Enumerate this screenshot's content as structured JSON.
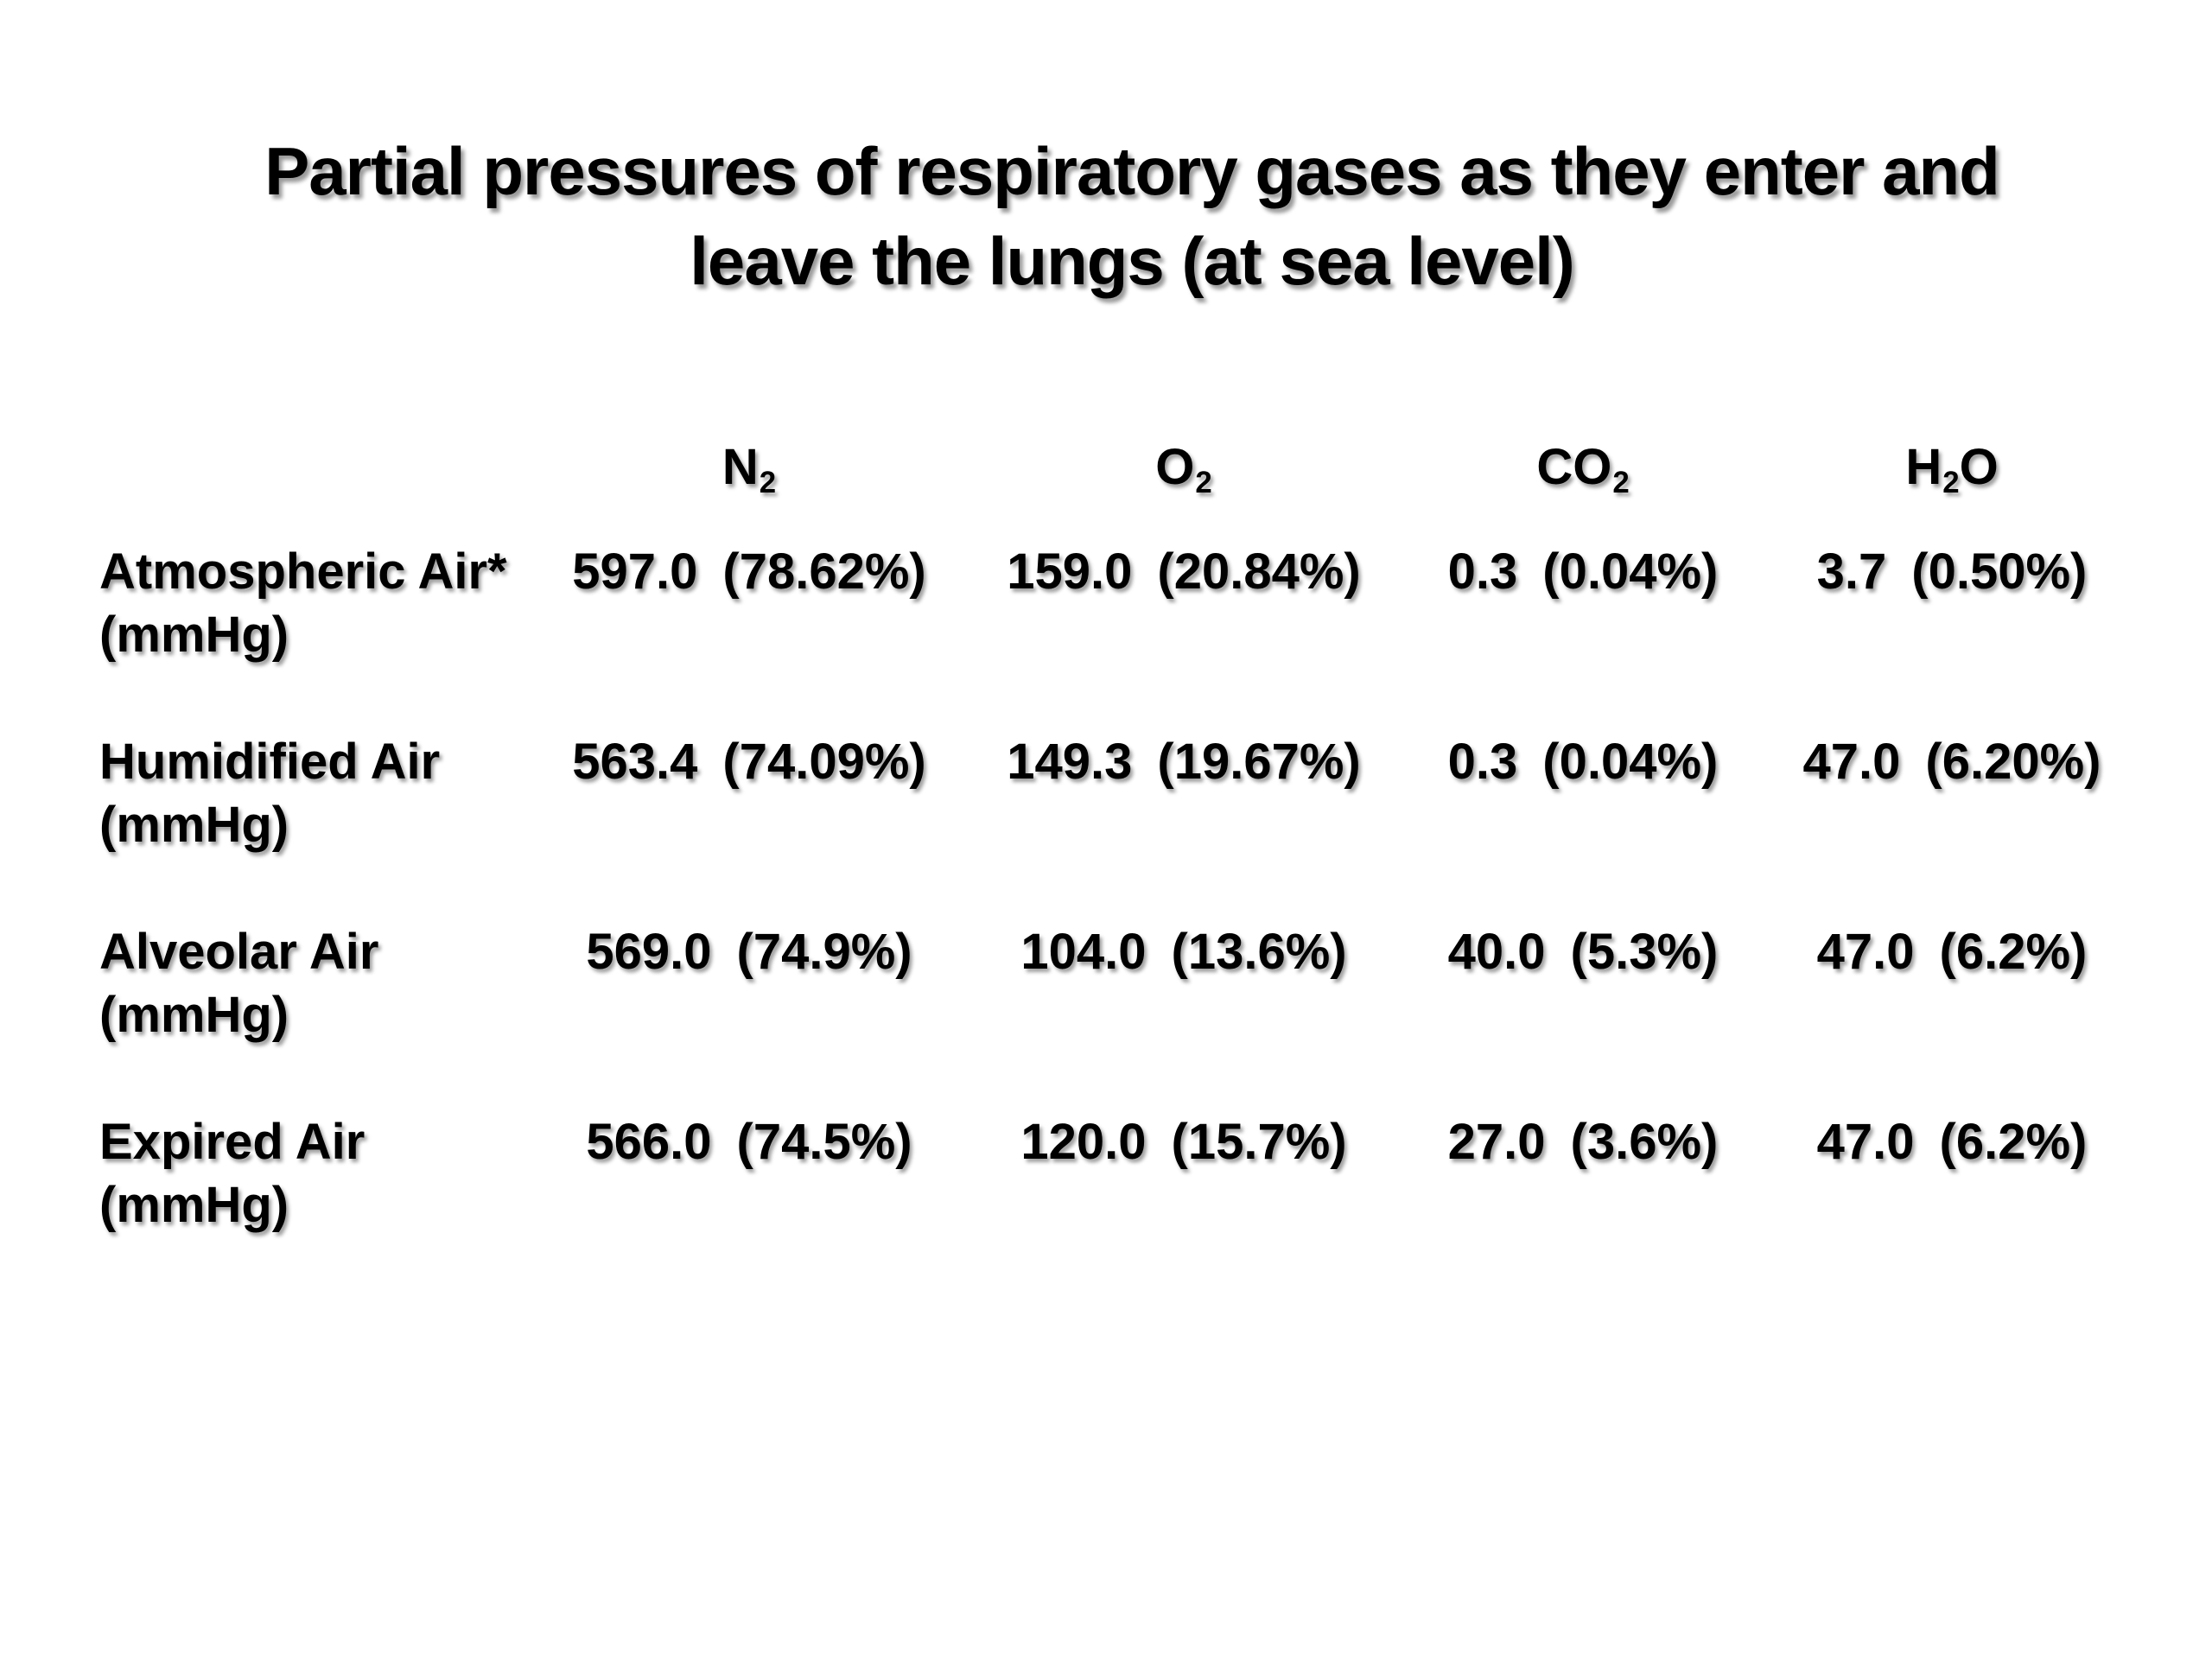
{
  "title": {
    "line1": "Partial pressures of respiratory gases as they enter and",
    "line2": "leave the lungs (at sea level)"
  },
  "table": {
    "columns": [
      {
        "main": "N",
        "sub": "2",
        "tail": ""
      },
      {
        "main": "O",
        "sub": "2",
        "tail": ""
      },
      {
        "main": "CO",
        "sub": "2",
        "tail": ""
      },
      {
        "main": "H",
        "sub": "2",
        "tail": "O"
      }
    ],
    "rows": [
      {
        "label": "Atmospheric Air*",
        "unit": "(mmHg)",
        "cells": [
          {
            "num": "597.0",
            "pct": "(78.62%)"
          },
          {
            "num": "159.0",
            "pct": "(20.84%)"
          },
          {
            "num": "0.3",
            "pct": "(0.04%)"
          },
          {
            "num": "3.7",
            "pct": "(0.50%)"
          }
        ]
      },
      {
        "label": "Humidified Air",
        "unit": "(mmHg)",
        "cells": [
          {
            "num": "563.4",
            "pct": "(74.09%)"
          },
          {
            "num": "149.3",
            "pct": "(19.67%)"
          },
          {
            "num": "0.3",
            "pct": "(0.04%)"
          },
          {
            "num": "47.0",
            "pct": "(6.20%)"
          }
        ]
      },
      {
        "label": "Alveolar Air",
        "unit": "(mmHg)",
        "cells": [
          {
            "num": "569.0",
            "pct": "(74.9%)"
          },
          {
            "num": "104.0",
            "pct": "(13.6%)"
          },
          {
            "num": "40.0",
            "pct": "(5.3%)"
          },
          {
            "num": "47.0",
            "pct": "(6.2%)"
          }
        ]
      },
      {
        "label": "Expired Air",
        "unit": "(mmHg)",
        "cells": [
          {
            "num": "566.0",
            "pct": "(74.5%)"
          },
          {
            "num": "120.0",
            "pct": "(15.7%)"
          },
          {
            "num": "27.0",
            "pct": "(3.6%)"
          },
          {
            "num": "47.0",
            "pct": "(6.2%)"
          }
        ]
      }
    ]
  },
  "colors": {
    "background": "#ffffff",
    "text": "#000000"
  }
}
